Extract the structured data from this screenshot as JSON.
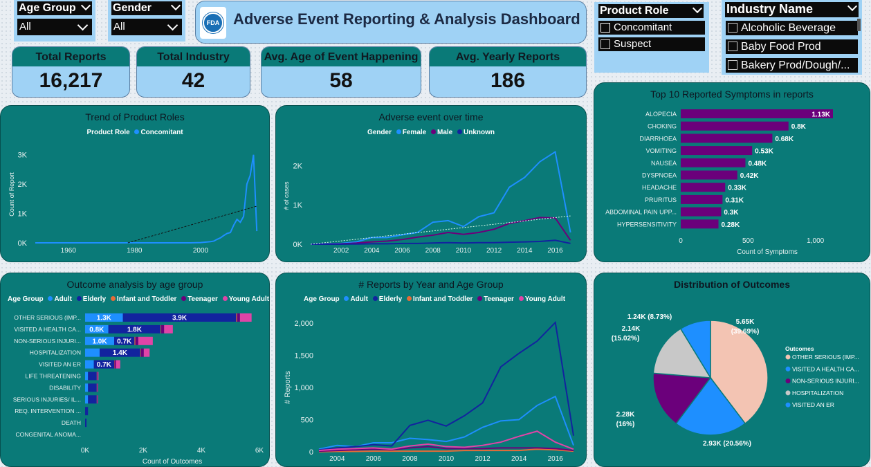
{
  "slicers": {
    "age_group": {
      "title": "Age Group",
      "value": "All"
    },
    "gender": {
      "title": "Gender",
      "value": "All"
    },
    "product_role": {
      "title": "Product Role",
      "options": [
        {
          "label": "Concomitant",
          "checked": true
        },
        {
          "label": "Suspect",
          "checked": false
        }
      ]
    },
    "industry_name": {
      "title": "Industry Name",
      "options": [
        {
          "label": "Alcoholic Beverage"
        },
        {
          "label": "Baby Food Prod"
        },
        {
          "label": "Bakery Prod/Dough/..."
        }
      ]
    }
  },
  "header": {
    "title": "Adverse Event Reporting & Analysis Dashboard",
    "logo_text": "FDA"
  },
  "kpis": [
    {
      "label": "Total Reports",
      "value": "16,217"
    },
    {
      "label": "Total Industry",
      "value": "42"
    },
    {
      "label": "Avg. Age of Event Happening",
      "value": "58"
    },
    {
      "label": "Avg. Yearly Reports",
      "value": "186"
    }
  ],
  "colors": {
    "panel": "#0a7a78",
    "light_blue": "#1e8fff",
    "dark_blue": "#12239e",
    "purple": "#6b007b",
    "pink": "#e044a7",
    "orange": "#e66c37",
    "peach": "#f3c4b3",
    "grey": "#c8c8c8"
  },
  "chart_data": [
    {
      "id": "trend-product-roles",
      "type": "line",
      "title": "Trend of Product Roles",
      "legend_title": "Product Role",
      "series": [
        {
          "name": "Concomitant",
          "color": "#1e8fff",
          "x": [
            1950,
            1960,
            1970,
            1980,
            1990,
            1997,
            2000,
            2003,
            2004,
            2005,
            2006,
            2007,
            2008,
            2009,
            2010,
            2011,
            2012,
            2013,
            2014,
            2015,
            2016,
            2017
          ],
          "y": [
            0,
            0,
            0,
            0,
            0,
            0,
            10,
            40,
            60,
            120,
            170,
            250,
            320,
            350,
            600,
            800,
            700,
            900,
            2000,
            2300,
            3000,
            400
          ]
        }
      ],
      "trendline": {
        "x": [
          1978,
          2017
        ],
        "y": [
          0,
          1250
        ]
      },
      "ylabel": "Count of Report",
      "yticks": [
        "0K",
        "1K",
        "2K",
        "3K"
      ],
      "xticks": [
        "1960",
        "1980",
        "2000"
      ],
      "ylim": [
        0,
        3300
      ]
    },
    {
      "id": "adverse-event-over-time",
      "type": "line",
      "title": "Adverse event over time",
      "legend_title": "Gender",
      "x": [
        2000,
        2001,
        2002,
        2003,
        2004,
        2005,
        2006,
        2007,
        2008,
        2009,
        2010,
        2011,
        2012,
        2013,
        2014,
        2015,
        2016,
        2017
      ],
      "series": [
        {
          "name": "Female",
          "color": "#1e8fff",
          "values": [
            0,
            10,
            20,
            60,
            170,
            170,
            240,
            300,
            560,
            600,
            450,
            700,
            800,
            1450,
            1700,
            2100,
            2350,
            300
          ]
        },
        {
          "name": "Male",
          "color": "#6b007b",
          "values": [
            0,
            5,
            10,
            30,
            60,
            80,
            120,
            180,
            230,
            300,
            250,
            300,
            380,
            530,
            600,
            680,
            670,
            100
          ]
        },
        {
          "name": "Unknown",
          "color": "#12239e",
          "values": [
            0,
            0,
            0,
            5,
            10,
            10,
            20,
            20,
            30,
            40,
            30,
            40,
            40,
            50,
            60,
            70,
            100,
            20
          ]
        }
      ],
      "trendline": {
        "x": [
          2000,
          2017
        ],
        "y": [
          0,
          720
        ]
      },
      "ylabel": "# of cases",
      "yticks": [
        "0K",
        "1K",
        "2K"
      ],
      "xticks": [
        "2002",
        "2004",
        "2006",
        "2008",
        "2010",
        "2012",
        "2014",
        "2016"
      ],
      "ylim": [
        0,
        2500
      ]
    },
    {
      "id": "top-symptoms",
      "type": "bar",
      "title": "Top 10 Reported Symptoms in reports",
      "categories": [
        "ALOPECIA",
        "CHOKING",
        "DIARRHOEA",
        "VOMITING",
        "NAUSEA",
        "DYSPNOEA",
        "HEADACHE",
        "PRURITUS",
        "ABDOMINAL PAIN UPP...",
        "HYPERSENSITIVITY"
      ],
      "values": [
        1130,
        800,
        680,
        530,
        480,
        420,
        330,
        310,
        300,
        280
      ],
      "labels": [
        "1.13K",
        "0.8K",
        "0.68K",
        "0.53K",
        "0.48K",
        "0.42K",
        "0.33K",
        "0.31K",
        "0.3K",
        "0.28K"
      ],
      "xlabel": "Count of Symptoms",
      "xticks": [
        "0",
        "500",
        "1,000"
      ],
      "xlim": [
        0,
        1130
      ],
      "color": "#6b007b"
    },
    {
      "id": "outcome-by-age",
      "type": "bar",
      "title": "Outcome analysis by age group",
      "legend_title": "Age Group",
      "categories": [
        "OTHER SERIOUS (IMP...",
        "VISITED A HEALTH CA...",
        "NON-SERIOUS INJURI...",
        "HOSPITALIZATION",
        "VISITED AN ER",
        "LIFE THREATENING",
        "DISABILITY",
        "SERIOUS INJURIES/ IL...",
        "REQ. INTERVENTION ...",
        "DEATH",
        "CONGENITAL ANOMA..."
      ],
      "series": [
        {
          "name": "Adult",
          "color": "#1e8fff",
          "values": [
            1300,
            800,
            1000,
            500,
            300,
            100,
            100,
            100,
            0,
            0,
            0
          ],
          "labels": [
            "1.3K",
            "0.8K",
            "1.0K",
            "",
            "",
            "",
            "",
            "",
            "",
            "",
            ""
          ]
        },
        {
          "name": "Elderly",
          "color": "#12239e",
          "values": [
            3900,
            1800,
            700,
            1400,
            700,
            300,
            300,
            300,
            100,
            50,
            0
          ],
          "labels": [
            "3.9K",
            "1.8K",
            "0.7K",
            "1.4K",
            "0.7K",
            "",
            "",
            "",
            "",
            "",
            ""
          ]
        },
        {
          "name": "Infant and Toddler",
          "color": "#e66c37",
          "values": [
            30,
            20,
            30,
            20,
            10,
            10,
            5,
            5,
            0,
            0,
            0
          ],
          "labels": [
            "",
            "",
            "",
            "",
            "",
            "",
            "",
            "",
            "",
            "",
            ""
          ]
        },
        {
          "name": "Teenager",
          "color": "#6b007b",
          "values": [
            100,
            100,
            100,
            100,
            50,
            20,
            20,
            20,
            0,
            0,
            0
          ],
          "labels": [
            "",
            "",
            "",
            "",
            "",
            "",
            "",
            "",
            "",
            "",
            ""
          ]
        },
        {
          "name": "Young Adult",
          "color": "#e044a7",
          "values": [
            400,
            300,
            500,
            200,
            150,
            30,
            20,
            20,
            0,
            0,
            0
          ],
          "labels": [
            "",
            "",
            "",
            "",
            "",
            "",
            "",
            "",
            "",
            "",
            ""
          ]
        }
      ],
      "xlabel": "Count of Outcomes",
      "xticks": [
        "0K",
        "2K",
        "4K",
        "6K"
      ],
      "xlim": [
        0,
        6000
      ]
    },
    {
      "id": "reports-by-year-age",
      "type": "line",
      "title": "# Reports by Year and Age Group",
      "legend_title": "Age Group",
      "x": [
        2003,
        2004,
        2005,
        2006,
        2007,
        2008,
        2009,
        2010,
        2011,
        2012,
        2013,
        2014,
        2015,
        2016,
        2017
      ],
      "series": [
        {
          "name": "Adult",
          "color": "#1e8fff",
          "values": [
            40,
            100,
            80,
            140,
            140,
            210,
            190,
            160,
            230,
            380,
            480,
            500,
            720,
            860,
            100
          ]
        },
        {
          "name": "Elderly",
          "color": "#12239e",
          "values": [
            30,
            60,
            80,
            110,
            90,
            410,
            490,
            400,
            560,
            760,
            1320,
            1530,
            1720,
            2010,
            250
          ]
        },
        {
          "name": "Infant and Toddler",
          "color": "#e66c37",
          "values": [
            0,
            5,
            5,
            10,
            10,
            10,
            10,
            10,
            20,
            20,
            20,
            20,
            40,
            30,
            10
          ]
        },
        {
          "name": "Teenager",
          "color": "#6b007b",
          "values": [
            10,
            20,
            30,
            40,
            30,
            60,
            80,
            50,
            50,
            50,
            60,
            60,
            60,
            50,
            20
          ]
        },
        {
          "name": "Young Adult",
          "color": "#e044a7",
          "values": [
            20,
            40,
            50,
            60,
            40,
            90,
            120,
            80,
            70,
            100,
            150,
            240,
            320,
            150,
            40
          ]
        }
      ],
      "ylabel": "# Reports",
      "yticks": [
        "0",
        "500",
        "1,000",
        "1,500",
        "2,000"
      ],
      "xticks": [
        "2004",
        "2006",
        "2008",
        "2010",
        "2012",
        "2014",
        "2016"
      ],
      "ylim": [
        0,
        2000
      ]
    },
    {
      "id": "distribution-outcomes",
      "type": "pie",
      "title": "Distribution of Outcomes",
      "legend_title": "Outcomes",
      "slices": [
        {
          "name": "OTHER SERIOUS (IMP...",
          "value": 5650,
          "label": "5.65K",
          "pct": "(39.69%)",
          "color": "#f3c4b3"
        },
        {
          "name": "VISITED A HEALTH CA...",
          "value": 2930,
          "label": "2.93K (20.56%)",
          "pct": "",
          "color": "#1e8fff"
        },
        {
          "name": "NON-SERIOUS INJURI...",
          "value": 2280,
          "label": "2.28K",
          "pct": "(16%)",
          "color": "#6b007b"
        },
        {
          "name": "HOSPITALIZATION",
          "value": 2140,
          "label": "2.14K",
          "pct": "(15.02%)",
          "color": "#c8c8c8"
        },
        {
          "name": "VISITED AN ER",
          "value": 1240,
          "label": "1.24K (8.73%)",
          "pct": "",
          "color": "#1e8fff"
        }
      ]
    }
  ]
}
